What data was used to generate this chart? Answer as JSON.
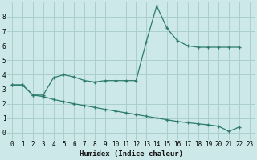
{
  "xlabel": "Humidex (Indice chaleur)",
  "bg_color": "#cce8e8",
  "grid_color": "#aacfcf",
  "line_color": "#2d7a6e",
  "xlim": [
    -0.5,
    23.5
  ],
  "ylim": [
    -0.5,
    9.0
  ],
  "xticks": [
    0,
    1,
    2,
    3,
    4,
    5,
    6,
    7,
    8,
    9,
    10,
    11,
    12,
    13,
    14,
    15,
    16,
    17,
    18,
    19,
    20,
    21,
    22,
    23
  ],
  "yticks": [
    0,
    1,
    2,
    3,
    4,
    5,
    6,
    7,
    8
  ],
  "line1_x": [
    0,
    1,
    2,
    3,
    4,
    5,
    6,
    7,
    8,
    9,
    10,
    11,
    12,
    13,
    14,
    15,
    16,
    17,
    18,
    19,
    20,
    21,
    22
  ],
  "line1_y": [
    3.3,
    3.3,
    2.6,
    2.6,
    3.8,
    4.0,
    3.85,
    3.6,
    3.5,
    3.6,
    3.6,
    3.6,
    3.6,
    6.3,
    8.75,
    7.2,
    6.35,
    6.0,
    5.9,
    5.9,
    5.9,
    5.9,
    5.9
  ],
  "line2_x": [
    0,
    1,
    2,
    3,
    4,
    5,
    6,
    7,
    8,
    9,
    10,
    11,
    12,
    13,
    14,
    15,
    16,
    17,
    18,
    19,
    20,
    21,
    22
  ],
  "line2_y": [
    3.3,
    3.3,
    2.6,
    2.5,
    2.3,
    2.15,
    2.0,
    1.88,
    1.75,
    1.62,
    1.5,
    1.38,
    1.26,
    1.14,
    1.02,
    0.9,
    0.78,
    0.7,
    0.62,
    0.55,
    0.45,
    0.1,
    0.4
  ],
  "xlabel_fontsize": 6.5,
  "tick_fontsize": 5.5
}
